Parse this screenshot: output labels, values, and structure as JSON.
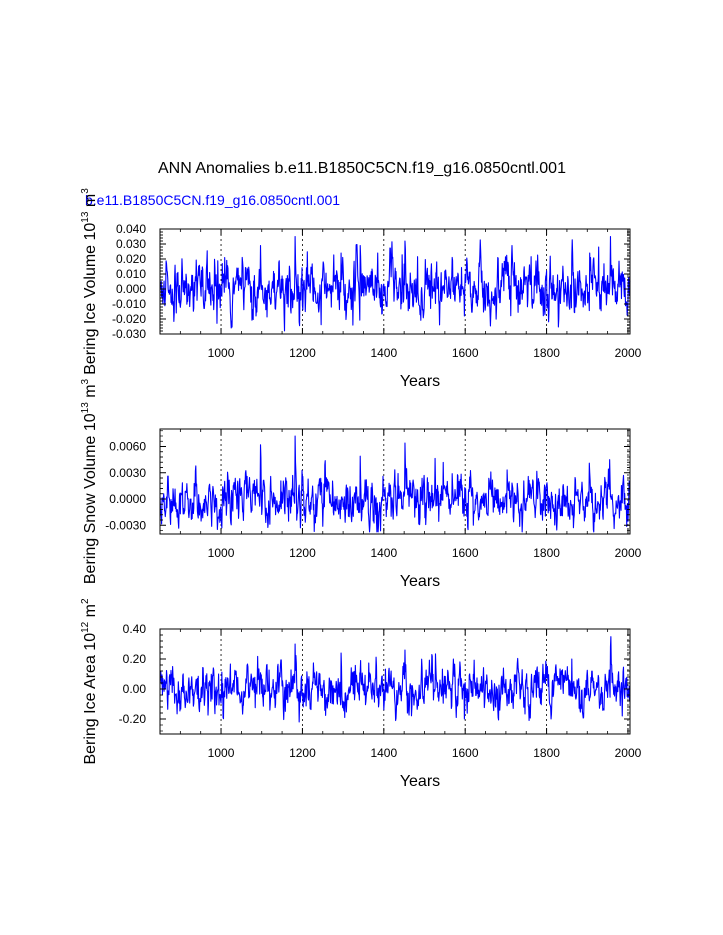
{
  "title": "ANN Anomalies b.e11.B1850C5CN.f19_g16.0850cntl.001",
  "case_label": "b.e11.B1850C5CN.f19_g16.0850cntl.001",
  "colors": {
    "series": "#0000ff",
    "axis": "#000000",
    "grid": "#000000"
  },
  "chart_data": [
    {
      "type": "line",
      "ylabel": "Bering Ice Volume",
      "yunit_base": "10",
      "yunit_exp": "13",
      "yunit_suffix": "m",
      "yunit_suffix_exp": "3",
      "xlabel": "Years",
      "xlim": [
        850,
        2005
      ],
      "ylim": [
        -0.03,
        0.04
      ],
      "xticks": [
        1000,
        1200,
        1400,
        1600,
        1800,
        2000
      ],
      "xtick_labels": [
        "1000",
        "1200",
        "1400",
        "1600",
        "1800",
        "2000"
      ],
      "yticks": [
        -0.03,
        -0.02,
        -0.01,
        0.0,
        0.01,
        0.02,
        0.03,
        0.04
      ],
      "ytick_labels": [
        "-0.030",
        "-0.020",
        "-0.010",
        "0.000",
        "0.010",
        "0.020",
        "0.030",
        "0.040"
      ],
      "vgrid": [
        1000,
        1200,
        1400,
        1600,
        1800,
        2000
      ],
      "series": [
        {
          "name": "Bering Ice Volume anomaly",
          "amplitude": 0.0075,
          "noise_seed": 11,
          "spikes": [
            [
              1097,
              0.029
            ],
            [
              1182,
              0.035
            ],
            [
              1192,
              -0.022
            ],
            [
              1295,
              0.024
            ],
            [
              1342,
              0.029
            ],
            [
              1385,
              0.024
            ],
            [
              1452,
              0.032
            ],
            [
              1598,
              -0.018
            ],
            [
              1906,
              0.024
            ],
            [
              1957,
              0.035
            ],
            [
              1928,
              0.028
            ],
            [
              1862,
              0.022
            ]
          ]
        }
      ]
    },
    {
      "type": "line",
      "ylabel": "Bering Snow Volume",
      "yunit_base": "10",
      "yunit_exp": "13",
      "yunit_suffix": "m",
      "yunit_suffix_exp": "3",
      "xlabel": "Years",
      "xlim": [
        850,
        2005
      ],
      "ylim": [
        -0.004,
        0.008
      ],
      "xticks": [
        1000,
        1200,
        1400,
        1600,
        1800,
        2000
      ],
      "xtick_labels": [
        "1000",
        "1200",
        "1400",
        "1600",
        "1800",
        "2000"
      ],
      "yticks": [
        -0.003,
        0.0,
        0.003,
        0.006
      ],
      "ytick_labels": [
        "-0.0030",
        "0.0000",
        "0.0030",
        "0.0060"
      ],
      "vgrid": [
        1000,
        1200,
        1400,
        1600,
        1800,
        2000
      ],
      "series": [
        {
          "name": "Bering Snow Volume anomaly",
          "amplitude": 0.0012,
          "noise_seed": 23,
          "spikes": [
            [
              1097,
              0.0062
            ],
            [
              1182,
              0.0072
            ],
            [
              1255,
              0.0039
            ],
            [
              1342,
              0.0049
            ],
            [
              1452,
              0.0064
            ],
            [
              1905,
              0.0041
            ],
            [
              1955,
              0.0045
            ],
            [
              1620,
              -0.003
            ]
          ]
        }
      ]
    },
    {
      "type": "line",
      "ylabel": "Bering Ice Area",
      "yunit_base": "10",
      "yunit_exp": "12",
      "yunit_suffix": "m",
      "yunit_suffix_exp": "2",
      "xlabel": "Years",
      "xlim": [
        850,
        2005
      ],
      "ylim": [
        -0.3,
        0.4
      ],
      "xticks": [
        1000,
        1200,
        1400,
        1600,
        1800,
        2000
      ],
      "xtick_labels": [
        "1000",
        "1200",
        "1400",
        "1600",
        "1800",
        "2000"
      ],
      "yticks": [
        -0.2,
        0.0,
        0.2,
        0.4
      ],
      "ytick_labels": [
        "-0.20",
        "0.00",
        "0.20",
        "0.40"
      ],
      "vgrid": [
        1000,
        1200,
        1400,
        1600,
        1800,
        2000
      ],
      "series": [
        {
          "name": "Bering Ice Area anomaly",
          "amplitude": 0.065,
          "noise_seed": 37,
          "spikes": [
            [
              1182,
              0.3
            ],
            [
              1192,
              -0.22
            ],
            [
              1295,
              0.24
            ],
            [
              1452,
              0.26
            ],
            [
              1598,
              -0.2
            ],
            [
              1757,
              -0.21
            ],
            [
              1957,
              0.28
            ],
            [
              1862,
              0.2
            ],
            [
              1005,
              -0.19
            ]
          ]
        }
      ]
    }
  ]
}
